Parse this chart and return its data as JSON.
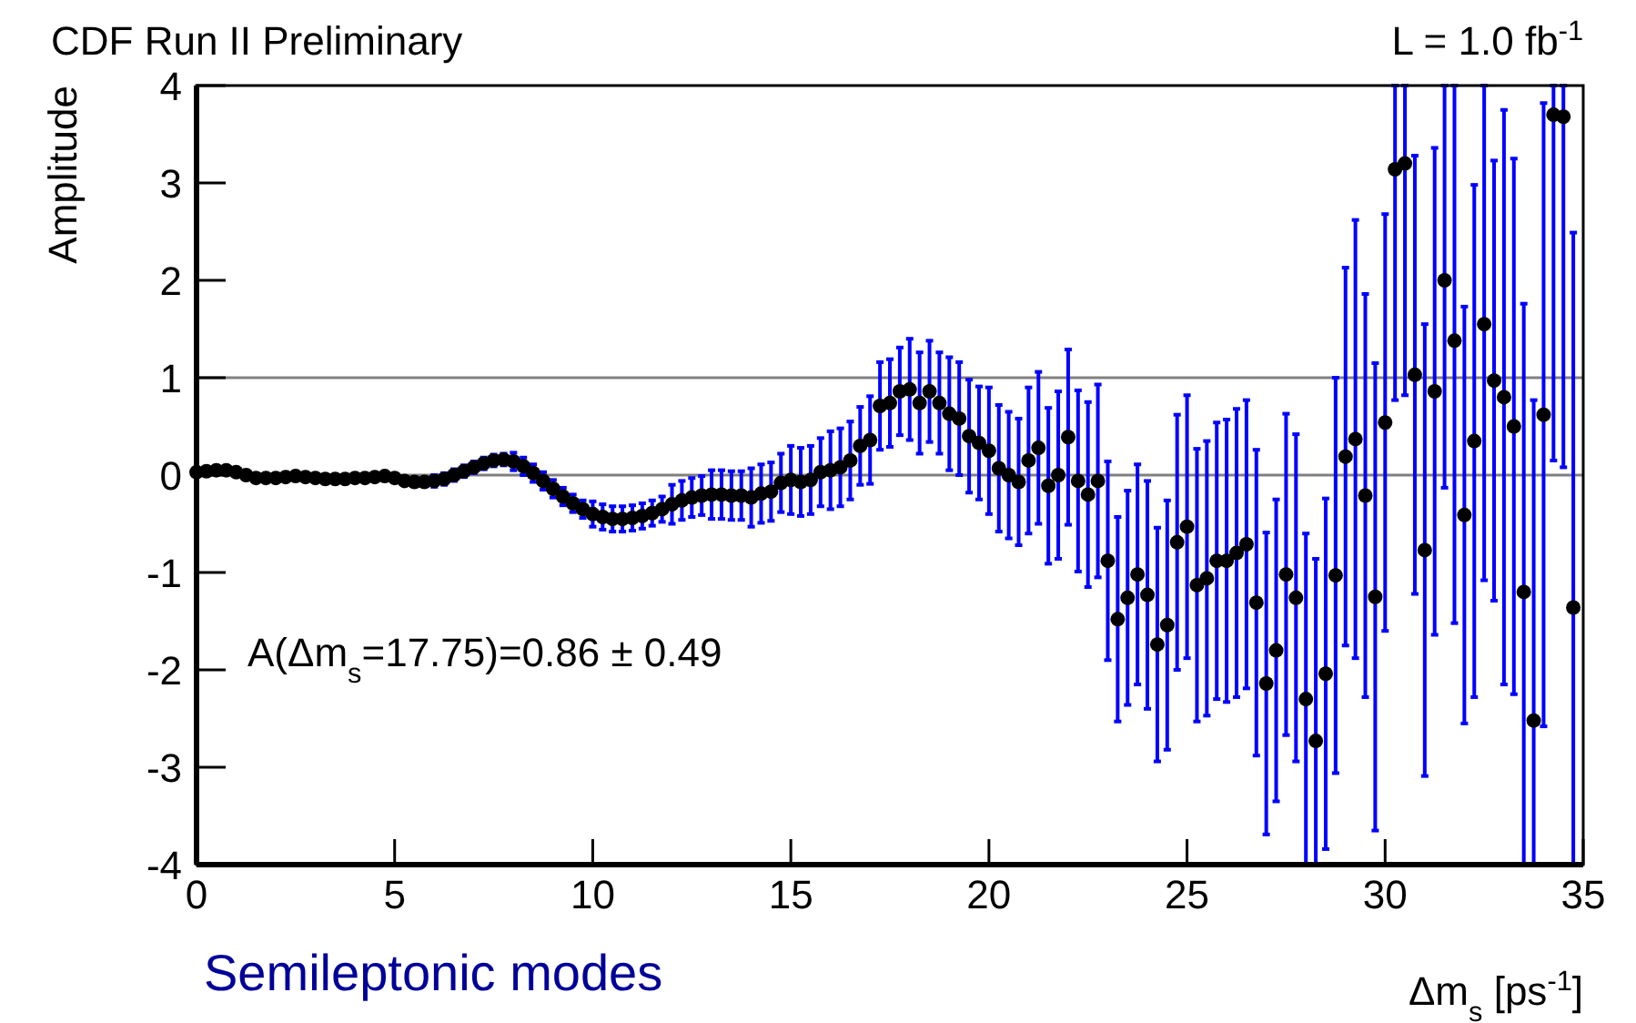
{
  "chart_data": {
    "type": "scatter",
    "title": "CDF Run II Preliminary",
    "subtitle": "L = 1.0 fb$^{-1}$",
    "xlabel": "Δm$_{s}$ [ps$^{-1}$]",
    "ylabel": "Amplitude",
    "annotations": [
      "A(Δm$_{s}$=17.75)=0.86 ± 0.49",
      "Semileptonic modes"
    ],
    "xlim": [
      0,
      35
    ],
    "xticks": [
      0,
      5,
      10,
      15,
      20,
      25,
      30,
      35
    ],
    "ylim": [
      -4,
      4
    ],
    "yticks": [
      -4,
      -3,
      -2,
      -1,
      0,
      1,
      2,
      3,
      4
    ],
    "marker": "circle",
    "color": "#000000",
    "ref_lines": [
      {
        "axis": "y",
        "value": 0,
        "color": "#808080"
      },
      {
        "axis": "y",
        "value": 1,
        "color": "#808080"
      }
    ],
    "x": [
      0,
      0.25,
      0.5,
      0.75,
      1,
      1.25,
      1.5,
      1.75,
      2,
      2.25,
      2.5,
      2.75,
      3,
      3.25,
      3.5,
      3.75,
      4,
      4.25,
      4.5,
      4.75,
      5,
      5.25,
      5.5,
      5.75,
      6,
      6.25,
      6.5,
      6.75,
      7,
      7.25,
      7.5,
      7.75,
      8,
      8.25,
      8.5,
      8.75,
      9,
      9.25,
      9.5,
      9.75,
      10,
      10.25,
      10.5,
      10.75,
      11,
      11.25,
      11.5,
      11.75,
      12,
      12.25,
      12.5,
      12.75,
      13,
      13.25,
      13.5,
      13.75,
      14,
      14.25,
      14.5,
      14.75,
      15,
      15.25,
      15.5,
      15.75,
      16,
      16.25,
      16.5,
      16.75,
      17,
      17.25,
      17.5,
      17.75,
      18,
      18.25,
      18.5,
      18.75,
      19,
      19.25,
      19.5,
      19.75,
      20,
      20.25,
      20.5,
      20.75,
      21,
      21.25,
      21.5,
      21.75,
      22,
      22.25,
      22.5,
      22.75,
      23,
      23.25,
      23.5,
      23.75,
      24,
      24.25,
      24.5,
      24.75,
      25,
      25.25,
      25.5,
      25.75,
      26,
      26.25,
      26.5,
      26.75,
      27,
      27.25,
      27.5,
      27.75,
      28,
      28.25,
      28.5,
      28.75,
      29,
      29.25,
      29.5,
      29.75,
      30,
      30.25,
      30.5,
      30.75,
      31,
      31.25,
      31.5,
      31.75,
      32,
      32.25,
      32.5,
      32.75,
      33,
      33.25,
      33.5,
      33.75,
      34,
      34.25,
      34.5,
      34.75
    ],
    "values": [
      0.03,
      0.04,
      0.05,
      0.05,
      0.03,
      0,
      -0.03,
      -0.03,
      -0.03,
      -0.02,
      -0.01,
      -0.02,
      -0.03,
      -0.04,
      -0.04,
      -0.04,
      -0.03,
      -0.03,
      -0.02,
      -0.01,
      -0.03,
      -0.06,
      -0.07,
      -0.07,
      -0.06,
      -0.04,
      0,
      0.04,
      0.08,
      0.12,
      0.15,
      0.16,
      0.14,
      0.09,
      0.02,
      -0.06,
      -0.14,
      -0.22,
      -0.29,
      -0.35,
      -0.4,
      -0.43,
      -0.45,
      -0.45,
      -0.44,
      -0.42,
      -0.39,
      -0.35,
      -0.3,
      -0.26,
      -0.23,
      -0.21,
      -0.2,
      -0.2,
      -0.21,
      -0.21,
      -0.23,
      -0.19,
      -0.17,
      -0.08,
      -0.05,
      -0.07,
      -0.05,
      0.03,
      0.05,
      0.08,
      0.15,
      0.3,
      0.36,
      0.71,
      0.74,
      0.86,
      0.88,
      0.74,
      0.86,
      0.74,
      0.63,
      0.58,
      0.4,
      0.33,
      0.25,
      0.07,
      0,
      -0.07,
      0.15,
      0.28,
      -0.11,
      0,
      0.39,
      -0.06,
      -0.2,
      -0.06,
      -0.88,
      -1.48,
      -1.26,
      -1.02,
      -1.23,
      -1.74,
      -1.54,
      -0.69,
      -0.53,
      -1.13,
      -1.06,
      -0.88,
      -0.88,
      -0.8,
      -0.71,
      -1.31,
      -2.14,
      -1.8,
      -1.02,
      -1.26,
      -2.3,
      -2.73,
      -2.04,
      -1.03,
      0.19,
      0.37,
      -0.21,
      -1.25,
      0.54,
      3.14,
      3.2,
      1.03,
      -0.77,
      0.86,
      2,
      1.38,
      -0.41,
      0.35,
      1.55,
      0.97,
      0.8,
      0.5,
      -1.2,
      -2.52,
      0.62,
      3.7,
      3.68,
      -1.36
    ],
    "errors": [
      0.03,
      0.03,
      0.03,
      0.03,
      0.03,
      0.03,
      0.03,
      0.03,
      0.03,
      0.03,
      0.03,
      0.03,
      0.03,
      0.03,
      0.03,
      0.03,
      0.03,
      0.03,
      0.03,
      0.03,
      0.03,
      0.03,
      0.03,
      0.03,
      0.06,
      0.06,
      0.06,
      0.06,
      0.06,
      0.06,
      0.06,
      0.06,
      0.09,
      0.09,
      0.09,
      0.09,
      0.09,
      0.09,
      0.09,
      0.09,
      0.13,
      0.13,
      0.13,
      0.13,
      0.13,
      0.13,
      0.13,
      0.13,
      0.2,
      0.2,
      0.2,
      0.2,
      0.25,
      0.25,
      0.25,
      0.25,
      0.3,
      0.3,
      0.3,
      0.3,
      0.35,
      0.35,
      0.35,
      0.35,
      0.4,
      0.4,
      0.4,
      0.4,
      0.45,
      0.45,
      0.45,
      0.45,
      0.52,
      0.52,
      0.52,
      0.52,
      0.58,
      0.58,
      0.58,
      0.58,
      0.65,
      0.65,
      0.65,
      0.65,
      0.75,
      0.78,
      0.8,
      0.86,
      0.9,
      0.93,
      0.95,
      0.99,
      1.02,
      1.05,
      1.1,
      1.13,
      1.17,
      1.2,
      1.28,
      1.31,
      1.35,
      1.4,
      1.41,
      1.42,
      1.45,
      1.48,
      1.48,
      1.57,
      1.55,
      1.55,
      1.65,
      1.68,
      [
        -4,
        -0.6
      ],
      [
        -4,
        -0.86
      ],
      1.8,
      2.03,
      1.94,
      2.25,
      2.07,
      2.4,
      2.14,
      [
        0.77,
        4
      ],
      [
        0.82,
        4
      ],
      2.25,
      2.32,
      2.5,
      [
        -0.13,
        4
      ],
      [
        -1.52,
        4
      ],
      2.14,
      2.63,
      [
        -1.08,
        4
      ],
      2.26,
      2.95,
      2.75,
      [
        -4,
        1.76
      ],
      [
        -4,
        0.77
      ],
      3.2,
      [
        0.15,
        4
      ],
      [
        0.08,
        4
      ],
      [
        -4,
        2.49
      ]
    ]
  }
}
